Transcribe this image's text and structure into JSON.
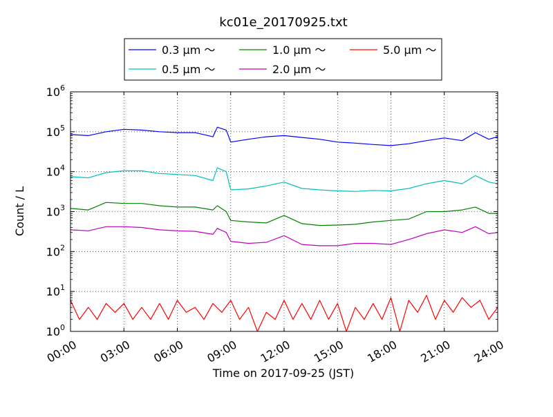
{
  "chart_data": {
    "type": "line",
    "title": "kc01e_20170925.txt",
    "xlabel": "Time on 2017-09-25 (JST)",
    "ylabel": "Count / L",
    "y_scale": "log",
    "ylim": [
      1,
      1000000
    ],
    "xlim": [
      "00:00",
      "24:00"
    ],
    "grid": true,
    "legend_position": "top-center, above plot",
    "x_ticks": [
      "00:00",
      "03:00",
      "06:00",
      "09:00",
      "12:00",
      "15:00",
      "18:00",
      "21:00",
      "24:00"
    ],
    "y_ticks": [
      {
        "base": "10",
        "exp": "0"
      },
      {
        "base": "10",
        "exp": "1"
      },
      {
        "base": "10",
        "exp": "2"
      },
      {
        "base": "10",
        "exp": "3"
      },
      {
        "base": "10",
        "exp": "4"
      },
      {
        "base": "10",
        "exp": "5"
      },
      {
        "base": "10",
        "exp": "6"
      }
    ],
    "series": [
      {
        "name": "0.3 μm ～",
        "color": "#0000ff",
        "x": [
          "00:00",
          "01:00",
          "02:00",
          "03:00",
          "04:00",
          "05:00",
          "06:00",
          "07:00",
          "08:00",
          "08:15",
          "08:45",
          "09:00",
          "10:00",
          "11:00",
          "12:00",
          "13:00",
          "14:00",
          "15:00",
          "16:00",
          "17:00",
          "18:00",
          "19:00",
          "20:00",
          "21:00",
          "22:00",
          "22:45",
          "23:30",
          "24:00"
        ],
        "values": [
          85000,
          80000,
          100000,
          115000,
          110000,
          100000,
          95000,
          95000,
          75000,
          130000,
          110000,
          55000,
          65000,
          75000,
          80000,
          72000,
          65000,
          55000,
          52000,
          48000,
          45000,
          50000,
          60000,
          70000,
          60000,
          95000,
          65000,
          75000
        ]
      },
      {
        "name": "0.5 μm ～",
        "color": "#00bfbf",
        "x": [
          "00:00",
          "01:00",
          "02:00",
          "03:00",
          "04:00",
          "05:00",
          "06:00",
          "07:00",
          "08:00",
          "08:15",
          "08:45",
          "09:00",
          "10:00",
          "11:00",
          "12:00",
          "13:00",
          "14:00",
          "15:00",
          "16:00",
          "17:00",
          "18:00",
          "19:00",
          "20:00",
          "21:00",
          "22:00",
          "22:45",
          "23:30",
          "24:00"
        ],
        "values": [
          7500,
          7000,
          9500,
          10500,
          10500,
          9000,
          8500,
          8000,
          6000,
          12500,
          10000,
          3500,
          3700,
          4400,
          5500,
          3800,
          3500,
          3300,
          3200,
          3400,
          3300,
          3800,
          5000,
          6000,
          5000,
          8000,
          5500,
          5000
        ]
      },
      {
        "name": "1.0 μm ～",
        "color": "#008000",
        "x": [
          "00:00",
          "01:00",
          "02:00",
          "03:00",
          "04:00",
          "05:00",
          "06:00",
          "07:00",
          "08:00",
          "08:15",
          "08:45",
          "09:00",
          "10:00",
          "11:00",
          "12:00",
          "13:00",
          "14:00",
          "15:00",
          "16:00",
          "17:00",
          "18:00",
          "19:00",
          "20:00",
          "21:00",
          "22:00",
          "22:45",
          "23:30",
          "24:00"
        ],
        "values": [
          1200,
          1100,
          1700,
          1600,
          1600,
          1400,
          1300,
          1300,
          1100,
          1400,
          1000,
          600,
          550,
          520,
          800,
          500,
          450,
          460,
          480,
          550,
          600,
          650,
          1000,
          1000,
          1100,
          1300,
          900,
          900
        ]
      },
      {
        "name": "2.0 μm ～",
        "color": "#bf00bf",
        "x": [
          "00:00",
          "01:00",
          "02:00",
          "03:00",
          "04:00",
          "05:00",
          "06:00",
          "07:00",
          "08:00",
          "08:15",
          "08:45",
          "09:00",
          "10:00",
          "11:00",
          "12:00",
          "13:00",
          "14:00",
          "15:00",
          "16:00",
          "17:00",
          "18:00",
          "19:00",
          "20:00",
          "21:00",
          "22:00",
          "22:45",
          "23:30",
          "24:00"
        ],
        "values": [
          350,
          330,
          420,
          420,
          400,
          350,
          330,
          320,
          270,
          380,
          300,
          180,
          160,
          170,
          250,
          150,
          140,
          140,
          160,
          160,
          150,
          200,
          280,
          350,
          300,
          420,
          280,
          300
        ]
      },
      {
        "name": "5.0 μm ～",
        "color": "#ff0000",
        "x": [
          "00:00",
          "00:30",
          "01:00",
          "01:30",
          "02:00",
          "02:30",
          "03:00",
          "03:30",
          "04:00",
          "04:30",
          "05:00",
          "05:30",
          "06:00",
          "06:30",
          "07:00",
          "07:30",
          "08:00",
          "08:30",
          "09:00",
          "09:30",
          "10:00",
          "10:30",
          "11:00",
          "11:30",
          "12:00",
          "12:30",
          "13:00",
          "13:30",
          "14:00",
          "14:30",
          "15:00",
          "15:30",
          "16:00",
          "16:30",
          "17:00",
          "17:30",
          "18:00",
          "18:30",
          "19:00",
          "19:30",
          "20:00",
          "20:30",
          "21:00",
          "21:30",
          "22:00",
          "22:30",
          "23:00",
          "23:30",
          "24:00"
        ],
        "values": [
          6,
          2,
          4,
          2,
          5,
          3,
          5,
          2,
          4,
          2,
          5,
          2,
          6,
          3,
          4,
          2,
          5,
          3,
          6,
          2,
          4,
          1,
          3,
          2,
          6,
          2,
          5,
          2,
          6,
          2,
          5,
          1,
          4,
          2,
          5,
          2,
          7,
          1,
          6,
          3,
          8,
          2,
          6,
          3,
          7,
          4,
          6,
          2,
          4
        ]
      }
    ]
  }
}
